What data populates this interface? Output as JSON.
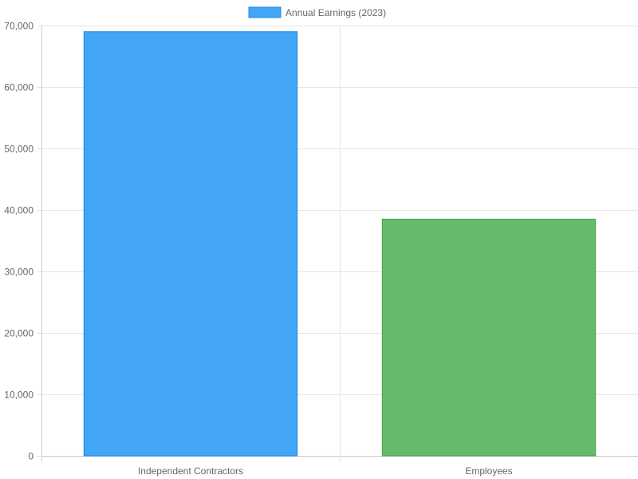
{
  "chart_data": {
    "type": "bar",
    "categories": [
      "Independent Contractors",
      "Employees"
    ],
    "series": [
      {
        "name": "Annual Earnings (2023)",
        "values": [
          69000,
          38500
        ]
      }
    ],
    "bar_fill_colors": [
      "#42a5f5",
      "#66bb6a"
    ],
    "bar_border_colors": [
      "#1e88e5",
      "#43a047"
    ],
    "legend_swatch_fill": "#42a5f5",
    "legend_swatch_border": "#1e88e5",
    "ylim": [
      0,
      70000
    ],
    "y_ticks": [
      0,
      10000,
      20000,
      30000,
      40000,
      50000,
      60000,
      70000
    ],
    "y_tick_labels": [
      "0",
      "10,000",
      "20,000",
      "30,000",
      "40,000",
      "50,000",
      "60,000",
      "70,000"
    ],
    "grid": true,
    "grid_color": "#e5e5e5",
    "axis_color": "#cccccc",
    "legend_position": "top-center"
  }
}
